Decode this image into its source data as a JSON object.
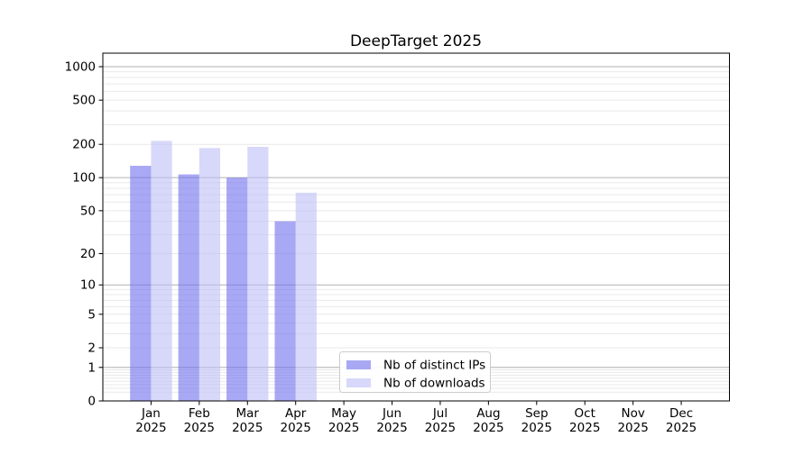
{
  "title": "DeepTarget 2025",
  "chart_data": {
    "type": "bar",
    "title": "DeepTarget 2025",
    "xlabel": "",
    "ylabel": "",
    "y_scale": "log-like (log10(1+y))",
    "ylim": [
      0,
      1320
    ],
    "grid": true,
    "legend_position": "inside-bottom-center",
    "year": "2025",
    "categories": [
      "Jan 2025",
      "Feb 2025",
      "Mar 2025",
      "Apr 2025",
      "May 2025",
      "Jun 2025",
      "Jul 2025",
      "Aug 2025",
      "Sep 2025",
      "Oct 2025",
      "Nov 2025",
      "Dec 2025"
    ],
    "x_tick_labels": [
      {
        "line1": "Jan",
        "line2": "2025"
      },
      {
        "line1": "Feb",
        "line2": "2025"
      },
      {
        "line1": "Mar",
        "line2": "2025"
      },
      {
        "line1": "Apr",
        "line2": "2025"
      },
      {
        "line1": "May",
        "line2": "2025"
      },
      {
        "line1": "Jun",
        "line2": "2025"
      },
      {
        "line1": "Jul",
        "line2": "2025"
      },
      {
        "line1": "Aug",
        "line2": "2025"
      },
      {
        "line1": "Sep",
        "line2": "2025"
      },
      {
        "line1": "Oct",
        "line2": "2025"
      },
      {
        "line1": "Nov",
        "line2": "2025"
      },
      {
        "line1": "Dec",
        "line2": "2025"
      }
    ],
    "y_ticks": [
      {
        "label": "1000",
        "value": 1000
      },
      {
        "label": "500",
        "value": 500
      },
      {
        "label": "200",
        "value": 200
      },
      {
        "label": "100",
        "value": 100
      },
      {
        "label": "50",
        "value": 50
      },
      {
        "label": "20",
        "value": 20
      },
      {
        "label": "10",
        "value": 10
      },
      {
        "label": "5",
        "value": 5
      },
      {
        "label": "2",
        "value": 2
      },
      {
        "label": "1",
        "value": 1
      },
      {
        "label": "0",
        "value": 0
      }
    ],
    "series": [
      {
        "name": "Nb of distinct IPs",
        "color": "#6e6eed",
        "opacity": 0.6,
        "effective_color": "#a8a8f4",
        "values": [
          128,
          107,
          100,
          40,
          0,
          0,
          0,
          0,
          0,
          0,
          0,
          0
        ]
      },
      {
        "name": "Nb of downloads",
        "color": "#bebef7",
        "opacity": 0.6,
        "effective_color": "#d8d8f9",
        "values": [
          215,
          185,
          190,
          73,
          0,
          0,
          0,
          0,
          0,
          0,
          0,
          0
        ]
      }
    ],
    "grid_major_color": "#b0b0b0",
    "grid_minor_color": "#e9e9e9"
  }
}
